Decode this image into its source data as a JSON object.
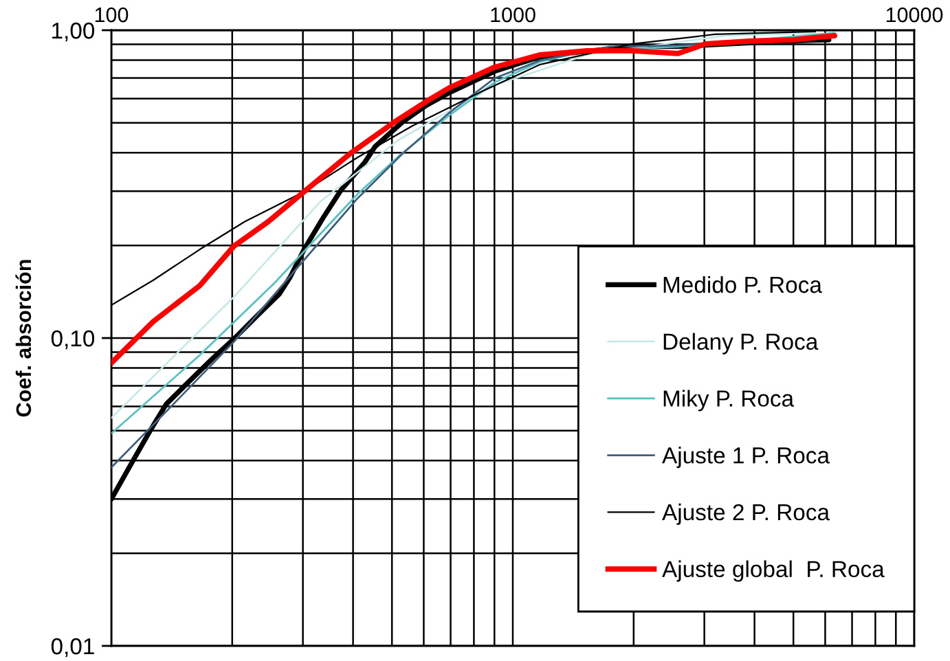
{
  "chart_data": {
    "type": "line",
    "ylabel": "Coef. absorción",
    "log": "xy",
    "xlim": [
      100,
      10000
    ],
    "ylim": [
      0.01,
      1
    ],
    "xticks": [
      100,
      1000,
      10000
    ],
    "yticks": [
      {
        "value": 0.01,
        "label": "0,01"
      },
      {
        "value": 0.1,
        "label": "0,10"
      },
      {
        "value": 1,
        "label": "1,00"
      }
    ],
    "grid": true,
    "legend": "bottom right",
    "series": [
      {
        "name": "Medido P. Roca",
        "color": "#000000",
        "x": [
          100,
          112,
          126,
          137,
          154,
          179,
          203,
          232,
          262,
          279,
          302,
          337,
          373,
          427,
          454,
          532,
          609,
          700,
          902,
          1170,
          1530,
          1990,
          2580,
          3450,
          4730,
          6130
        ],
        "values": [
          0.03,
          0.039,
          0.051,
          0.061,
          0.071,
          0.086,
          0.1,
          0.119,
          0.139,
          0.158,
          0.194,
          0.246,
          0.302,
          0.371,
          0.419,
          0.504,
          0.57,
          0.63,
          0.736,
          0.82,
          0.855,
          0.886,
          0.886,
          0.903,
          0.921,
          0.931
        ]
      },
      {
        "name": "Delany P. Roca",
        "color": "#c4e8e8",
        "x": [
          100,
          202,
          332,
          520,
          902,
          1530,
          3370,
          5670
        ],
        "values": [
          0.055,
          0.136,
          0.278,
          0.441,
          0.664,
          0.832,
          0.96,
          0.98
        ]
      },
      {
        "name": "Miky P. Roca",
        "color": "#55c1c1",
        "x": [
          100,
          166,
          255,
          410,
          520,
          696,
          902,
          1170,
          1530,
          2580,
          4370,
          6330
        ],
        "values": [
          0.049,
          0.088,
          0.151,
          0.293,
          0.39,
          0.53,
          0.678,
          0.79,
          0.858,
          0.885,
          0.94,
          0.98
        ]
      },
      {
        "name": "Ajuste 1 P. Roca",
        "color": "#3f5f7f",
        "x": [
          100,
          141,
          203,
          288,
          410,
          532,
          696,
          902,
          1170,
          1740,
          2580,
          5670
        ],
        "values": [
          0.038,
          0.06,
          0.098,
          0.167,
          0.284,
          0.398,
          0.541,
          0.699,
          0.798,
          0.885,
          0.893,
          0.94
        ]
      },
      {
        "name": "Ajuste 2 P. Roca",
        "color": "#000000",
        "x": [
          100,
          127,
          166,
          215,
          302,
          410,
          562,
          834,
          1170,
          1990,
          3190,
          5670
        ],
        "values": [
          0.128,
          0.154,
          0.194,
          0.239,
          0.299,
          0.386,
          0.489,
          0.631,
          0.774,
          0.903,
          0.97,
          0.99
        ]
      },
      {
        "name": "Ajuste global  P. Roca",
        "color": "#ff0000",
        "x": [
          100,
          127,
          166,
          202,
          246,
          302,
          394,
          508,
          609,
          696,
          902,
          1170,
          1530,
          1990,
          2580,
          3020,
          3820,
          5000,
          6330
        ],
        "values": [
          0.083,
          0.113,
          0.148,
          0.199,
          0.239,
          0.299,
          0.398,
          0.504,
          0.587,
          0.651,
          0.759,
          0.832,
          0.858,
          0.858,
          0.84,
          0.903,
          0.921,
          0.931,
          0.96
        ]
      }
    ]
  }
}
